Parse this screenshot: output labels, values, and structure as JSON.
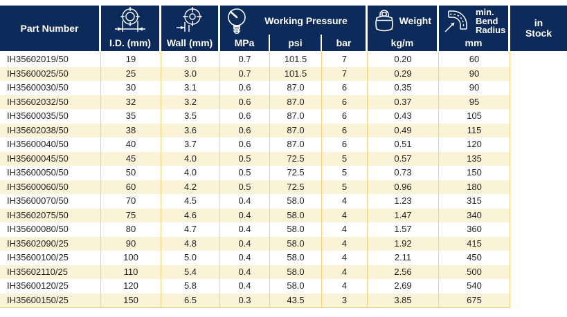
{
  "colors": {
    "header_navy": "#0D2B5A",
    "row_cream": "#FBF3D8",
    "grid_yellow": "#F5D37E",
    "header_text": "#FFFFFF",
    "body_text": "#221E1F"
  },
  "table": {
    "header": {
      "part_number": "Part Number",
      "id_label": "I.D. (mm)",
      "wall_label": "Wall (mm)",
      "working_pressure": "Working Pressure",
      "mpa": "MPa",
      "psi": "psi",
      "bar": "bar",
      "weight": "Weight",
      "kg_m": "kg/m",
      "bend_radius": "min.\nBend\nRadius",
      "bend_unit": "mm",
      "in_stock": "in\nStock",
      "icons": {
        "id": "inner-diameter-icon",
        "wall": "wall-thickness-icon",
        "pressure": "pressure-gauge-icon",
        "weight": "weight-icon",
        "bend": "bend-radius-icon"
      }
    },
    "columns": [
      "part",
      "id",
      "wall",
      "mpa",
      "psi",
      "bar",
      "kgm",
      "mm",
      "stock"
    ],
    "rows": [
      [
        "IH35602019/50",
        "19",
        "3.0",
        "0.7",
        "101.5",
        "7",
        "0.20",
        "60",
        ""
      ],
      [
        "IH35600025/50",
        "25",
        "3.0",
        "0.7",
        "101.5",
        "7",
        "0.29",
        "90",
        ""
      ],
      [
        "IH35600030/50",
        "30",
        "3.1",
        "0.6",
        "87.0",
        "6",
        "0.35",
        "90",
        ""
      ],
      [
        "IH35602032/50",
        "32",
        "3.2",
        "0.6",
        "87.0",
        "6",
        "0.37",
        "95",
        ""
      ],
      [
        "IH35600035/50",
        "35",
        "3.5",
        "0.6",
        "87.0",
        "6",
        "0.43",
        "105",
        ""
      ],
      [
        "IH35602038/50",
        "38",
        "3.6",
        "0.6",
        "87.0",
        "6",
        "0.49",
        "115",
        ""
      ],
      [
        "IH35600040/50",
        "40",
        "3.7",
        "0.6",
        "87.0",
        "6",
        "0.51",
        "120",
        ""
      ],
      [
        "IH35600045/50",
        "45",
        "4.0",
        "0.5",
        "72.5",
        "5",
        "0.57",
        "135",
        ""
      ],
      [
        "IH35600050/50",
        "50",
        "4.0",
        "0.5",
        "72.5",
        "5",
        "0.73",
        "150",
        ""
      ],
      [
        "IH35600060/50",
        "60",
        "4.2",
        "0.5",
        "72.5",
        "5",
        "0.96",
        "180",
        ""
      ],
      [
        "IH35600070/50",
        "70",
        "4.5",
        "0.4",
        "58.0",
        "4",
        "1.23",
        "315",
        ""
      ],
      [
        "IH35602075/50",
        "75",
        "4.6",
        "0.4",
        "58.0",
        "4",
        "1.47",
        "340",
        ""
      ],
      [
        "IH35600080/50",
        "80",
        "4.7",
        "0.4",
        "58.0",
        "4",
        "1.57",
        "360",
        ""
      ],
      [
        "IH35602090/25",
        "90",
        "4.8",
        "0.4",
        "58.0",
        "4",
        "1.92",
        "415",
        ""
      ],
      [
        "IH35600100/25",
        "100",
        "5.0",
        "0.4",
        "58.0",
        "4",
        "2.11",
        "450",
        ""
      ],
      [
        "IH35602110/25",
        "110",
        "5.4",
        "0.4",
        "58.0",
        "4",
        "2.56",
        "500",
        ""
      ],
      [
        "IH35600120/25",
        "120",
        "5.8",
        "0.4",
        "58.0",
        "4",
        "2.69",
        "540",
        ""
      ],
      [
        "IH35600150/25",
        "150",
        "6.5",
        "0.3",
        "43.5",
        "3",
        "3.85",
        "675",
        ""
      ]
    ]
  }
}
